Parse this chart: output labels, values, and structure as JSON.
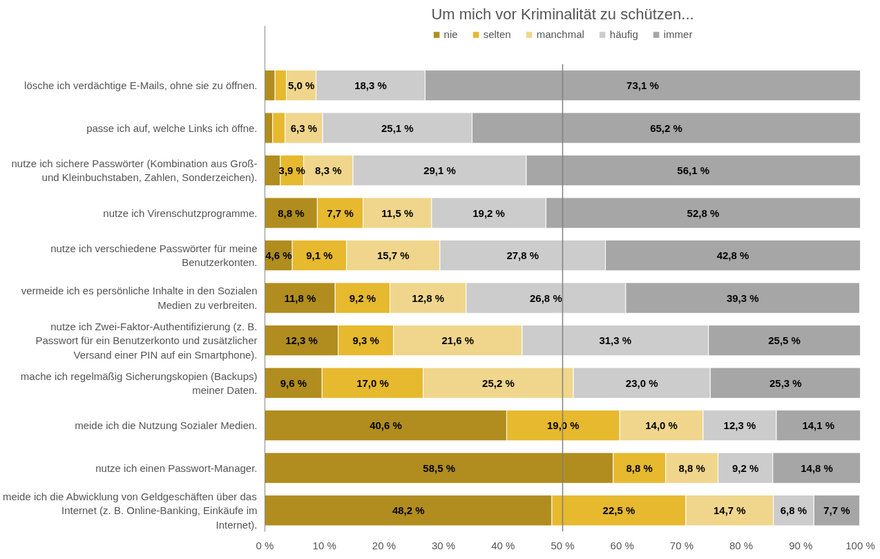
{
  "chart_data": {
    "type": "bar",
    "orientation": "horizontal",
    "stacked": true,
    "title": "Um mich vor Kriminalität zu schützen...",
    "categories": [
      "lösche ich verdächtige E-Mails, ohne sie zu öffnen.",
      "passe ich auf, welche Links ich öffne.",
      "nutze ich sichere Passwörter (Kombination aus Groß- und Kleinbuchstaben, Zahlen, Sonderzeichen).",
      "nutze ich Virenschutzprogramme.",
      "nutze ich verschiedene Passwörter für meine Benutzerkonten.",
      "vermeide ich es persönliche Inhalte in den Sozialen Medien zu verbreiten.",
      "nutze ich Zwei-Faktor-Authentifizierung (z. B. Passwort für ein Benutzerkonto und zusätzlicher Versand einer PIN auf ein Smartphone).",
      "mache ich regelmäßig Sicherungskopien (Backups) meiner Daten.",
      "meide ich die Nutzung Sozialer Medien.",
      "nutze ich einen Passwort-Manager.",
      "meide ich die Abwicklung von Geldgeschäften über das Internet (z. B. Online-Banking, Einkäufe im Internet)."
    ],
    "series": [
      {
        "name": "nie",
        "color": "#b08d1e",
        "values": [
          1.7,
          1.3,
          2.6,
          8.8,
          4.6,
          11.8,
          12.3,
          9.6,
          40.6,
          58.5,
          48.2
        ],
        "value_labels": [
          null,
          null,
          null,
          "8,8 %",
          "4,6 %",
          "11,8 %",
          "12,3 %",
          "9,6 %",
          "40,6 %",
          "58,5 %",
          "48,2 %"
        ]
      },
      {
        "name": "selten",
        "color": "#e6b92e",
        "values": [
          1.9,
          2.1,
          3.9,
          7.7,
          9.1,
          9.2,
          9.3,
          17.0,
          19.0,
          8.8,
          22.5
        ],
        "value_labels": [
          null,
          null,
          "3,9 %",
          "7,7 %",
          "9,1 %",
          "9,2 %",
          "9,3 %",
          "17,0 %",
          "19,0 %",
          "8,8 %",
          "22,5 %"
        ]
      },
      {
        "name": "manchmal",
        "color": "#f0d68c",
        "values": [
          5.0,
          6.3,
          8.3,
          11.5,
          15.7,
          12.8,
          21.6,
          25.2,
          14.0,
          8.8,
          14.7
        ],
        "value_labels": [
          "5,0 %",
          "6,3 %",
          "8,3 %",
          "11,5 %",
          "15,7 %",
          "12,8 %",
          "21,6 %",
          "25,2 %",
          "14,0 %",
          "8,8 %",
          "14,7 %"
        ]
      },
      {
        "name": "häufig",
        "color": "#cccccc",
        "values": [
          18.3,
          25.1,
          29.1,
          19.2,
          27.8,
          26.8,
          31.3,
          23.0,
          12.3,
          9.2,
          6.8
        ],
        "value_labels": [
          "18,3 %",
          "25,1 %",
          "29,1 %",
          "19,2 %",
          "27,8 %",
          "26,8 %",
          "31,3 %",
          "23,0 %",
          "12,3 %",
          "9,2 %",
          "6,8 %"
        ]
      },
      {
        "name": "immer",
        "color": "#a6a6a6",
        "values": [
          73.1,
          65.2,
          56.1,
          52.8,
          42.8,
          39.3,
          25.5,
          25.3,
          14.1,
          14.8,
          7.7
        ],
        "value_labels": [
          "73,1 %",
          "65,2 %",
          "56,1 %",
          "52,8 %",
          "42,8 %",
          "39,3 %",
          "25,5 %",
          "25,3 %",
          "14,1 %",
          "14,8 %",
          "7,7 %"
        ]
      }
    ],
    "xlim": [
      0,
      100
    ],
    "xticks": [
      {
        "value": 0,
        "label": "0 %"
      },
      {
        "value": 10,
        "label": "10 %"
      },
      {
        "value": 20,
        "label": "20 %"
      },
      {
        "value": 30,
        "label": "30 %"
      },
      {
        "value": 40,
        "label": "40 %"
      },
      {
        "value": 50,
        "label": "50 %"
      },
      {
        "value": 60,
        "label": "60 %"
      },
      {
        "value": 70,
        "label": "70 %"
      },
      {
        "value": 80,
        "label": "80 %"
      },
      {
        "value": 90,
        "label": "90 %"
      },
      {
        "value": 100,
        "label": "100 %"
      }
    ],
    "ref_lines": [
      {
        "axis": "x",
        "value": 50,
        "color": "#808080"
      }
    ],
    "grid": false,
    "legend": "top"
  }
}
